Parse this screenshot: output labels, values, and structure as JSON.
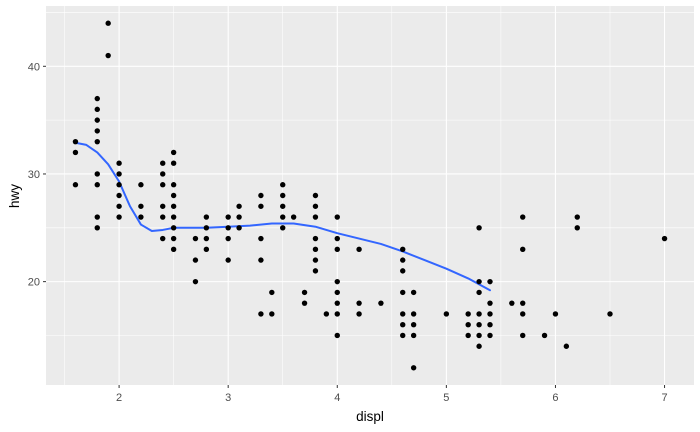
{
  "chart_data": {
    "type": "scatter",
    "xlabel": "displ",
    "ylabel": "hwy",
    "xlim": [
      1.33,
      7.27
    ],
    "ylim": [
      10.4,
      45.6
    ],
    "x_ticks": [
      2,
      3,
      4,
      5,
      6,
      7
    ],
    "y_ticks": [
      20,
      30,
      40
    ],
    "grid": true,
    "colors": {
      "panel": "#EBEBEB",
      "grid_major": "#FFFFFF",
      "point": "#000000",
      "smooth": "#3366FF",
      "tick_text": "#4D4D4D"
    },
    "points": [
      [
        1.6,
        29
      ],
      [
        1.6,
        32
      ],
      [
        1.6,
        33
      ],
      [
        1.8,
        25
      ],
      [
        1.8,
        26
      ],
      [
        1.8,
        29
      ],
      [
        1.8,
        30
      ],
      [
        1.8,
        33
      ],
      [
        1.8,
        34
      ],
      [
        1.8,
        35
      ],
      [
        1.8,
        36
      ],
      [
        1.8,
        37
      ],
      [
        1.9,
        41
      ],
      [
        1.9,
        44
      ],
      [
        2.0,
        26
      ],
      [
        2.0,
        27
      ],
      [
        2.0,
        28
      ],
      [
        2.0,
        29
      ],
      [
        2.0,
        30
      ],
      [
        2.0,
        31
      ],
      [
        2.2,
        26
      ],
      [
        2.2,
        27
      ],
      [
        2.2,
        29
      ],
      [
        2.4,
        24
      ],
      [
        2.4,
        26
      ],
      [
        2.4,
        27
      ],
      [
        2.4,
        29
      ],
      [
        2.4,
        30
      ],
      [
        2.4,
        31
      ],
      [
        2.5,
        23
      ],
      [
        2.5,
        24
      ],
      [
        2.5,
        25
      ],
      [
        2.5,
        26
      ],
      [
        2.5,
        27
      ],
      [
        2.5,
        28
      ],
      [
        2.5,
        29
      ],
      [
        2.5,
        31
      ],
      [
        2.5,
        32
      ],
      [
        2.7,
        20
      ],
      [
        2.7,
        22
      ],
      [
        2.7,
        24
      ],
      [
        2.8,
        23
      ],
      [
        2.8,
        24
      ],
      [
        2.8,
        25
      ],
      [
        2.8,
        26
      ],
      [
        3.0,
        22
      ],
      [
        3.0,
        24
      ],
      [
        3.0,
        25
      ],
      [
        3.0,
        26
      ],
      [
        3.1,
        25
      ],
      [
        3.1,
        26
      ],
      [
        3.1,
        27
      ],
      [
        3.3,
        17
      ],
      [
        3.3,
        22
      ],
      [
        3.3,
        24
      ],
      [
        3.3,
        27
      ],
      [
        3.3,
        28
      ],
      [
        3.4,
        17
      ],
      [
        3.4,
        19
      ],
      [
        3.5,
        25
      ],
      [
        3.5,
        26
      ],
      [
        3.5,
        27
      ],
      [
        3.5,
        28
      ],
      [
        3.5,
        29
      ],
      [
        3.6,
        26
      ],
      [
        3.7,
        18
      ],
      [
        3.7,
        19
      ],
      [
        3.8,
        21
      ],
      [
        3.8,
        22
      ],
      [
        3.8,
        23
      ],
      [
        3.8,
        24
      ],
      [
        3.8,
        26
      ],
      [
        3.8,
        27
      ],
      [
        3.8,
        28
      ],
      [
        3.9,
        17
      ],
      [
        4.0,
        15
      ],
      [
        4.0,
        17
      ],
      [
        4.0,
        18
      ],
      [
        4.0,
        19
      ],
      [
        4.0,
        20
      ],
      [
        4.0,
        23
      ],
      [
        4.0,
        24
      ],
      [
        4.0,
        26
      ],
      [
        4.2,
        17
      ],
      [
        4.2,
        18
      ],
      [
        4.2,
        23
      ],
      [
        4.4,
        18
      ],
      [
        4.6,
        15
      ],
      [
        4.6,
        16
      ],
      [
        4.6,
        17
      ],
      [
        4.6,
        19
      ],
      [
        4.6,
        21
      ],
      [
        4.6,
        22
      ],
      [
        4.6,
        23
      ],
      [
        4.7,
        12
      ],
      [
        4.7,
        15
      ],
      [
        4.7,
        16
      ],
      [
        4.7,
        17
      ],
      [
        4.7,
        19
      ],
      [
        5.0,
        17
      ],
      [
        5.2,
        15
      ],
      [
        5.2,
        16
      ],
      [
        5.2,
        17
      ],
      [
        5.3,
        14
      ],
      [
        5.3,
        15
      ],
      [
        5.3,
        16
      ],
      [
        5.3,
        17
      ],
      [
        5.3,
        19
      ],
      [
        5.3,
        20
      ],
      [
        5.3,
        25
      ],
      [
        5.4,
        15
      ],
      [
        5.4,
        16
      ],
      [
        5.4,
        17
      ],
      [
        5.4,
        18
      ],
      [
        5.4,
        20
      ],
      [
        5.6,
        18
      ],
      [
        5.7,
        15
      ],
      [
        5.7,
        17
      ],
      [
        5.7,
        18
      ],
      [
        5.7,
        23
      ],
      [
        5.7,
        26
      ],
      [
        5.9,
        15
      ],
      [
        6.0,
        17
      ],
      [
        6.1,
        14
      ],
      [
        6.2,
        25
      ],
      [
        6.2,
        26
      ],
      [
        6.5,
        17
      ],
      [
        7.0,
        24
      ]
    ],
    "smooth_line": {
      "x": [
        1.6,
        1.7,
        1.8,
        1.9,
        2.0,
        2.1,
        2.2,
        2.3,
        2.4,
        2.5,
        2.6,
        2.8,
        3.0,
        3.2,
        3.4,
        3.6,
        3.8,
        4.0,
        4.2,
        4.4,
        4.6,
        4.8,
        5.0,
        5.2,
        5.4
      ],
      "y": [
        32.9,
        32.7,
        32.0,
        30.9,
        29.3,
        27.0,
        25.3,
        24.7,
        24.8,
        25.0,
        25.0,
        25.0,
        25.1,
        25.2,
        25.4,
        25.4,
        25.1,
        24.5,
        24.0,
        23.5,
        22.8,
        22.0,
        21.2,
        20.3,
        19.2
      ]
    }
  }
}
